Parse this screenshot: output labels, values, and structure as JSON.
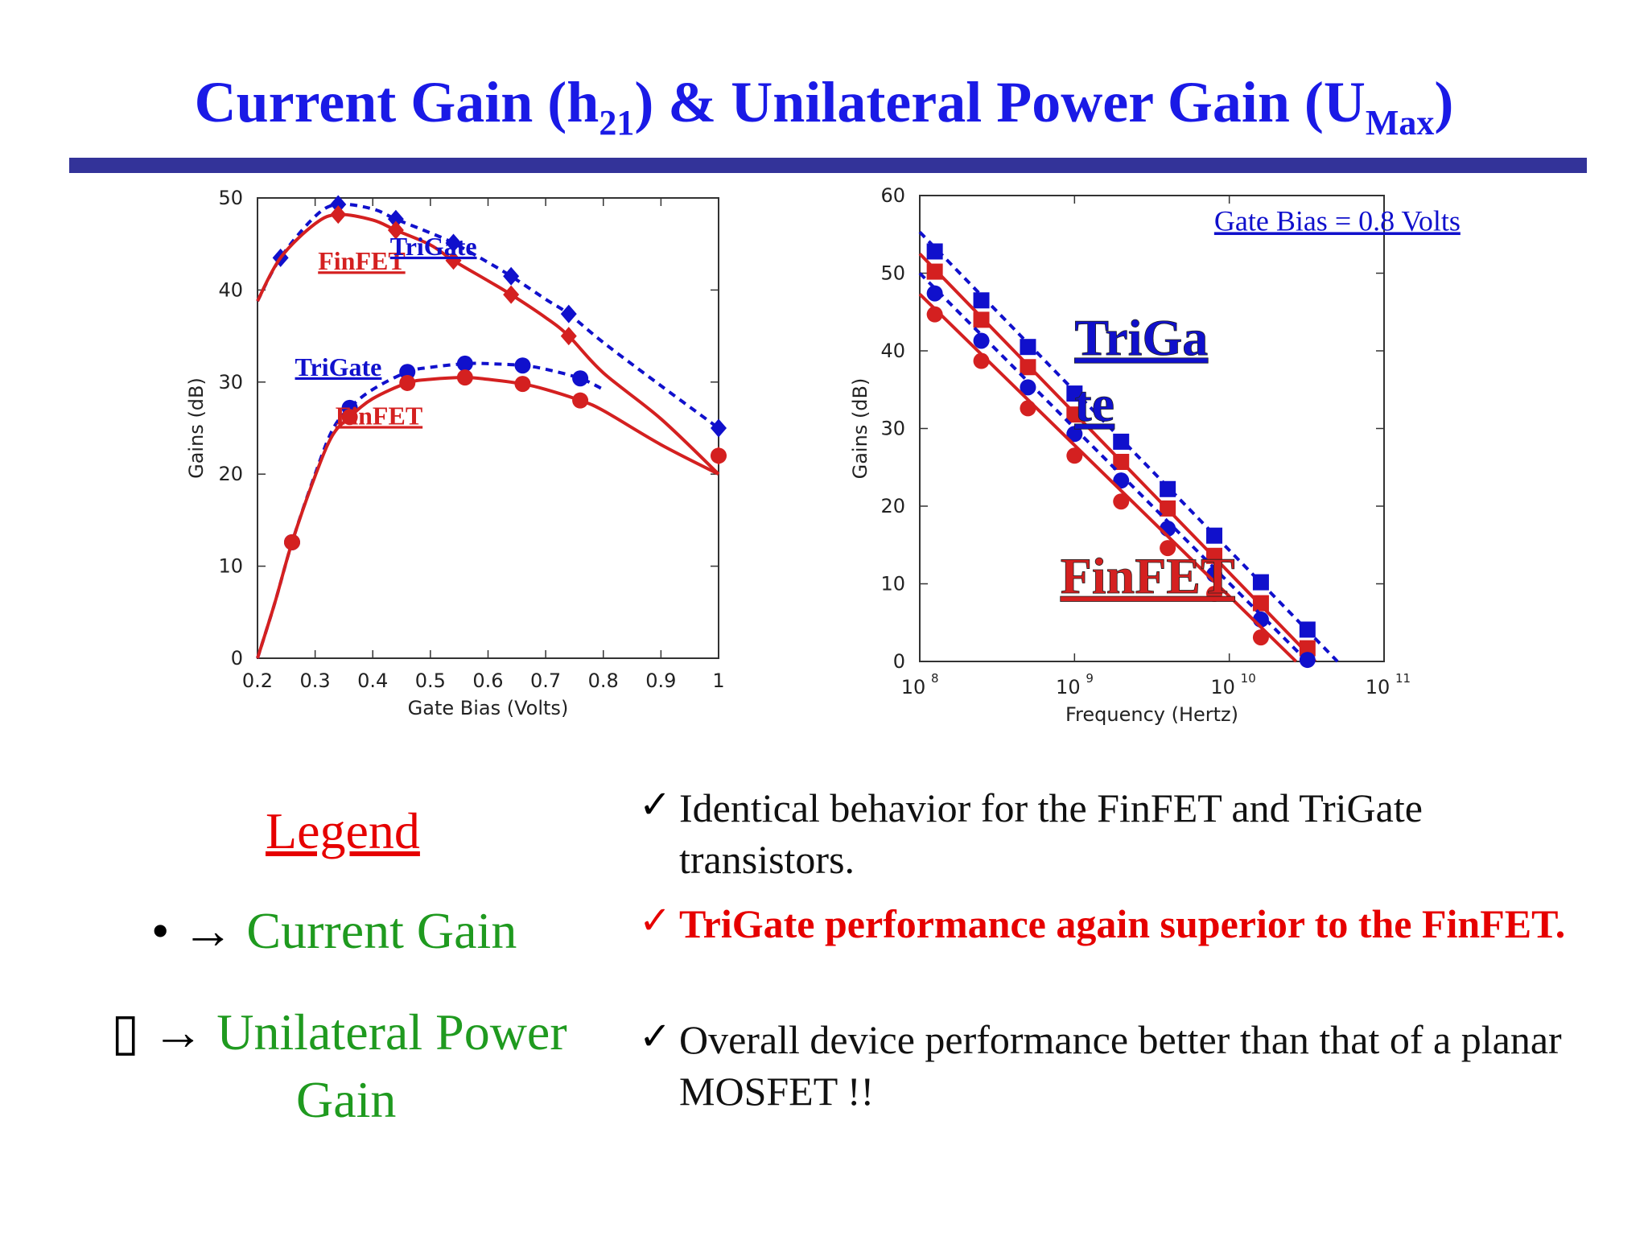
{
  "slide": {
    "title_main_1": "Current Gain (h",
    "title_sub_1": "21",
    "title_main_2": ") & Unilateral Power Gain (U",
    "title_sub_2": "Max",
    "title_main_3": ")"
  },
  "colors": {
    "title": "#1a1ae6",
    "rule": "#333399",
    "trigate": "#1010cc",
    "finfet": "#d42020",
    "legend_title": "#e60000",
    "legend_text": "#1f9a1f",
    "highlight": "#e60000"
  },
  "chart_data": [
    {
      "type": "line",
      "xlabel": "Gate Bias (Volts)",
      "ylabel": "Gains (dB)",
      "xlim": [
        0.2,
        1.0
      ],
      "ylim": [
        0,
        50
      ],
      "xticks": [
        "0.2",
        "0.3",
        "0.4",
        "0.5",
        "0.6",
        "0.7",
        "0.8",
        "0.9",
        "1"
      ],
      "yticks": [
        "0",
        "10",
        "20",
        "30",
        "40",
        "50"
      ],
      "grid": false,
      "annotations": [
        {
          "text": "FinFET",
          "series": "FinFET",
          "x": 0.305,
          "y": 42.2
        },
        {
          "text": "TriGate",
          "series": "TriGate",
          "x": 0.43,
          "y": 43.8
        },
        {
          "text": "TriGate",
          "series": "TriGate",
          "x": 0.265,
          "y": 30.7
        },
        {
          "text": "FinFET",
          "series": "FinFET",
          "x": 0.335,
          "y": 25.4
        }
      ],
      "series": [
        {
          "name": "TriGate",
          "marker": "diamond",
          "style": "dashed",
          "x": [
            0.24,
            0.34,
            0.44,
            0.54,
            0.64,
            0.74,
            1.0
          ],
          "y": [
            43.5,
            49.3,
            47.7,
            45.1,
            41.5,
            37.4,
            25.0
          ],
          "curve_x": [
            0.2,
            0.24,
            0.3,
            0.34,
            0.4,
            0.44,
            0.5,
            0.54,
            0.6,
            0.64,
            0.7,
            0.74,
            0.8,
            0.9,
            1.0
          ],
          "curve_y": [
            38.8,
            43.5,
            48.0,
            49.3,
            48.8,
            47.7,
            46.2,
            45.1,
            43.0,
            41.5,
            39.0,
            37.4,
            34.3,
            29.6,
            25.0
          ]
        },
        {
          "name": "FinFET",
          "marker": "diamond",
          "style": "solid",
          "x": [
            0.34,
            0.44,
            0.54,
            0.64,
            0.74,
            1.0
          ],
          "y": [
            48.2,
            46.5,
            43.2,
            39.5,
            35.0,
            22.0
          ],
          "curve_x": [
            0.2,
            0.24,
            0.3,
            0.34,
            0.4,
            0.44,
            0.5,
            0.54,
            0.6,
            0.64,
            0.7,
            0.74,
            0.8,
            0.9,
            1.0
          ],
          "curve_y": [
            38.8,
            43.5,
            47.2,
            48.2,
            47.6,
            46.5,
            44.9,
            43.2,
            41.0,
            39.5,
            37.0,
            35.0,
            31.0,
            26.0,
            20.0
          ]
        },
        {
          "name": "TriGate",
          "marker": "circle",
          "style": "dashed",
          "x": [
            0.26,
            0.36,
            0.46,
            0.56,
            0.66,
            0.76
          ],
          "y": [
            12.6,
            27.2,
            31.1,
            32.0,
            31.8,
            30.4
          ],
          "curve_x": [
            0.2,
            0.23,
            0.26,
            0.3,
            0.33,
            0.36,
            0.4,
            0.46,
            0.5,
            0.56,
            0.6,
            0.66,
            0.7,
            0.76,
            0.8
          ],
          "curve_y": [
            0,
            6.0,
            12.6,
            20.0,
            24.8,
            27.2,
            29.2,
            31.1,
            31.6,
            32.0,
            32.0,
            31.8,
            31.4,
            30.4,
            29.2
          ]
        },
        {
          "name": "FinFET",
          "marker": "circle",
          "style": "solid",
          "x": [
            0.26,
            0.36,
            0.46,
            0.56,
            0.66,
            0.76,
            1.0
          ],
          "y": [
            12.6,
            26.2,
            29.9,
            30.5,
            29.8,
            28.0,
            22.0
          ],
          "curve_x": [
            0.2,
            0.23,
            0.26,
            0.3,
            0.33,
            0.36,
            0.4,
            0.46,
            0.5,
            0.56,
            0.6,
            0.66,
            0.7,
            0.76,
            0.8,
            0.9,
            1.0
          ],
          "curve_y": [
            0,
            6.0,
            12.6,
            19.8,
            24.2,
            26.2,
            28.2,
            29.9,
            30.3,
            30.5,
            30.3,
            29.8,
            29.2,
            28.0,
            26.9,
            23.2,
            20.0
          ]
        }
      ]
    },
    {
      "type": "line",
      "xlabel": "Frequency (Hertz)",
      "ylabel": "Gains (dB)",
      "xscale": "log",
      "xlim": [
        100000000,
        100000000000
      ],
      "ylim": [
        0,
        60
      ],
      "xtick_base": [
        "10",
        "10",
        "10",
        "10"
      ],
      "xtick_exp": [
        "8",
        "9",
        "10",
        "11"
      ],
      "yticks": [
        "0",
        "10",
        "20",
        "30",
        "40",
        "50",
        "60"
      ],
      "grid": false,
      "annotations": [
        {
          "text": "Gate Bias = 0.8 Volts",
          "series": "",
          "x": 9000000000,
          "y": 55.5,
          "color": "#1010cc",
          "size": 36
        },
        {
          "text": "TriGa",
          "series": "TriGate",
          "x": 1000000000,
          "y": 39.5,
          "color": "#1010cc",
          "size": 64
        },
        {
          "text": "te",
          "series": "TriGate",
          "x": 1000000000,
          "y": 31.0,
          "color": "#1010cc",
          "size": 64
        },
        {
          "text": "FinFET",
          "series": "FinFET",
          "x": 810000000,
          "y": 8.8,
          "color": "#d42020",
          "size": 64
        }
      ],
      "series": [
        {
          "name": "TriGate",
          "marker": "square",
          "style": "dashed",
          "x": [
            125000000,
            250000000,
            500000000,
            1000000000,
            2000000000,
            4000000000,
            8000000000,
            16000000000,
            32000000000
          ],
          "y": [
            52.8,
            46.5,
            40.5,
            34.5,
            28.3,
            22.2,
            16.2,
            10.2,
            4.1
          ],
          "line_x": [
            100000000,
            50000000000
          ],
          "line_y": [
            55.3,
            0
          ]
        },
        {
          "name": "FinFET",
          "marker": "square",
          "style": "solid",
          "x": [
            125000000,
            250000000,
            500000000,
            1000000000,
            2000000000,
            4000000000,
            8000000000,
            16000000000,
            32000000000
          ],
          "y": [
            50.2,
            44.0,
            37.9,
            31.8,
            25.7,
            19.7,
            13.6,
            7.5,
            1.7
          ],
          "line_x": [
            100000000,
            36000000000
          ],
          "line_y": [
            52.5,
            0
          ]
        },
        {
          "name": "TriGate",
          "marker": "circle",
          "style": "dashed",
          "x": [
            125000000,
            250000000,
            500000000,
            1000000000,
            2000000000,
            4000000000,
            8000000000,
            16000000000,
            32000000000
          ],
          "y": [
            47.4,
            41.3,
            35.3,
            29.3,
            23.3,
            17.1,
            11.2,
            5.4,
            0.2
          ],
          "line_x": [
            100000000,
            32000000000
          ],
          "line_y": [
            50.0,
            0
          ]
        },
        {
          "name": "FinFET",
          "marker": "circle",
          "style": "solid",
          "x": [
            125000000,
            250000000,
            500000000,
            1000000000,
            2000000000,
            4000000000,
            8000000000,
            16000000000
          ],
          "y": [
            44.7,
            38.7,
            32.6,
            26.5,
            20.6,
            14.6,
            8.7,
            3.1
          ],
          "line_x": [
            100000000,
            27000000000
          ],
          "line_y": [
            47.3,
            0
          ]
        }
      ]
    }
  ],
  "legend": {
    "title": "Legend",
    "items": [
      {
        "symbol": "•",
        "arrow": "→",
        "label": "Current Gain"
      },
      {
        "symbol": "▯",
        "arrow": "→",
        "label": "Unilateral Power",
        "label_cont": "Gain"
      }
    ]
  },
  "bullets": [
    {
      "check": "✓",
      "text": "Identical behavior for the FinFET and TriGate transistors."
    },
    {
      "check": "✓",
      "text": "TriGate performance again superior to the FinFET."
    },
    {
      "check": "✓",
      "text": "Overall device performance better than that of a planar MOSFET !!"
    }
  ]
}
